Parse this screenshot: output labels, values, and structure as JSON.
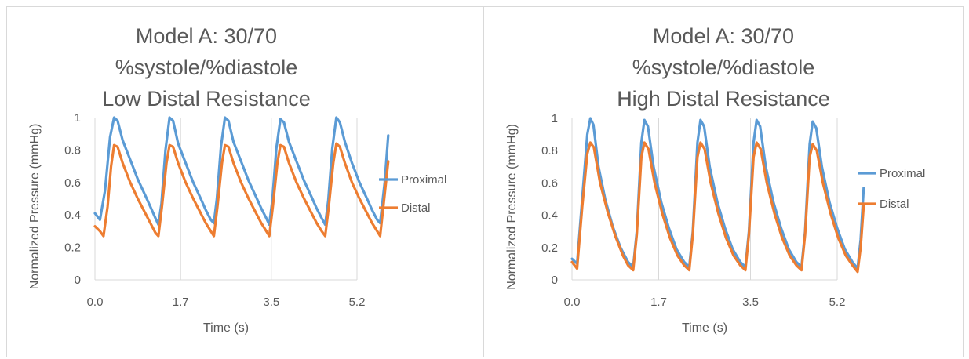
{
  "chart_data": [
    {
      "type": "line",
      "title": [
        "Model A: 30/70",
        "%systole/%diastole",
        "Low Distal Resistance"
      ],
      "xlabel": "Time (s)",
      "ylabel": "Normalized Pressure (mmHg)",
      "xlim": [
        0,
        5.2
      ],
      "ylim": [
        0,
        1
      ],
      "xticks": [
        0,
        1.7,
        3.5,
        5.2
      ],
      "xtick_labels": [
        "0.0",
        "1.7",
        "3.5",
        "5.2"
      ],
      "yticks": [
        0,
        0.2,
        0.4,
        0.6,
        0.8,
        1
      ],
      "ytick_labels": [
        "0",
        "0.2",
        "0.4",
        "0.6",
        "0.8",
        "1"
      ],
      "grid": "vertical",
      "legend": "right",
      "series": [
        {
          "name": "Proximal",
          "color": "#5B9BD5",
          "points": [
            [
              0.0,
              0.41
            ],
            [
              0.1,
              0.37
            ],
            [
              0.2,
              0.55
            ],
            [
              0.3,
              0.88
            ],
            [
              0.38,
              1.0
            ],
            [
              0.45,
              0.98
            ],
            [
              0.55,
              0.86
            ],
            [
              0.7,
              0.74
            ],
            [
              0.85,
              0.62
            ],
            [
              1.0,
              0.52
            ],
            [
              1.1,
              0.45
            ],
            [
              1.2,
              0.38
            ],
            [
              1.26,
              0.34
            ],
            [
              1.32,
              0.47
            ],
            [
              1.4,
              0.8
            ],
            [
              1.48,
              1.0
            ],
            [
              1.55,
              0.98
            ],
            [
              1.65,
              0.84
            ],
            [
              1.8,
              0.72
            ],
            [
              1.95,
              0.6
            ],
            [
              2.1,
              0.5
            ],
            [
              2.2,
              0.43
            ],
            [
              2.3,
              0.37
            ],
            [
              2.36,
              0.35
            ],
            [
              2.42,
              0.5
            ],
            [
              2.5,
              0.82
            ],
            [
              2.58,
              1.0
            ],
            [
              2.65,
              0.98
            ],
            [
              2.75,
              0.85
            ],
            [
              2.9,
              0.73
            ],
            [
              3.05,
              0.61
            ],
            [
              3.2,
              0.51
            ],
            [
              3.3,
              0.44
            ],
            [
              3.4,
              0.38
            ],
            [
              3.46,
              0.34
            ],
            [
              3.52,
              0.49
            ],
            [
              3.6,
              0.81
            ],
            [
              3.68,
              0.99
            ],
            [
              3.75,
              0.97
            ],
            [
              3.85,
              0.85
            ],
            [
              4.0,
              0.73
            ],
            [
              4.15,
              0.61
            ],
            [
              4.3,
              0.51
            ],
            [
              4.4,
              0.44
            ],
            [
              4.5,
              0.38
            ],
            [
              4.57,
              0.34
            ],
            [
              4.63,
              0.49
            ],
            [
              4.71,
              0.81
            ],
            [
              4.79,
              1.0
            ],
            [
              4.86,
              0.97
            ],
            [
              4.96,
              0.85
            ],
            [
              5.1,
              0.72
            ],
            [
              5.25,
              0.6
            ],
            [
              5.4,
              0.5
            ],
            [
              5.5,
              0.43
            ],
            [
              5.6,
              0.37
            ],
            [
              5.66,
              0.35
            ],
            [
              5.75,
              0.6
            ],
            [
              5.82,
              0.89
            ]
          ]
        },
        {
          "name": "Distal",
          "color": "#ED7D31",
          "points": [
            [
              0.0,
              0.33
            ],
            [
              0.1,
              0.3
            ],
            [
              0.17,
              0.27
            ],
            [
              0.25,
              0.45
            ],
            [
              0.32,
              0.7
            ],
            [
              0.38,
              0.83
            ],
            [
              0.45,
              0.82
            ],
            [
              0.55,
              0.72
            ],
            [
              0.7,
              0.6
            ],
            [
              0.85,
              0.5
            ],
            [
              1.0,
              0.41
            ],
            [
              1.1,
              0.35
            ],
            [
              1.2,
              0.29
            ],
            [
              1.26,
              0.27
            ],
            [
              1.33,
              0.45
            ],
            [
              1.42,
              0.72
            ],
            [
              1.48,
              0.83
            ],
            [
              1.55,
              0.82
            ],
            [
              1.65,
              0.72
            ],
            [
              1.8,
              0.6
            ],
            [
              1.95,
              0.5
            ],
            [
              2.1,
              0.41
            ],
            [
              2.2,
              0.35
            ],
            [
              2.3,
              0.3
            ],
            [
              2.36,
              0.27
            ],
            [
              2.43,
              0.45
            ],
            [
              2.52,
              0.72
            ],
            [
              2.58,
              0.83
            ],
            [
              2.65,
              0.82
            ],
            [
              2.75,
              0.72
            ],
            [
              2.9,
              0.6
            ],
            [
              3.05,
              0.5
            ],
            [
              3.2,
              0.41
            ],
            [
              3.3,
              0.35
            ],
            [
              3.4,
              0.3
            ],
            [
              3.46,
              0.27
            ],
            [
              3.53,
              0.45
            ],
            [
              3.62,
              0.72
            ],
            [
              3.68,
              0.83
            ],
            [
              3.75,
              0.82
            ],
            [
              3.85,
              0.72
            ],
            [
              4.0,
              0.6
            ],
            [
              4.15,
              0.5
            ],
            [
              4.3,
              0.41
            ],
            [
              4.4,
              0.35
            ],
            [
              4.5,
              0.3
            ],
            [
              4.57,
              0.27
            ],
            [
              4.64,
              0.45
            ],
            [
              4.73,
              0.72
            ],
            [
              4.79,
              0.84
            ],
            [
              4.86,
              0.82
            ],
            [
              4.96,
              0.72
            ],
            [
              5.1,
              0.6
            ],
            [
              5.25,
              0.5
            ],
            [
              5.4,
              0.41
            ],
            [
              5.5,
              0.35
            ],
            [
              5.6,
              0.3
            ],
            [
              5.66,
              0.27
            ],
            [
              5.74,
              0.5
            ],
            [
              5.82,
              0.73
            ]
          ]
        }
      ]
    },
    {
      "type": "line",
      "title": [
        "Model A: 30/70",
        "%systole/%diastole",
        "High Distal Resistance"
      ],
      "xlabel": "Time (s)",
      "ylabel": "Normalized Pressure (mmHg)",
      "xlim": [
        0,
        5.2
      ],
      "ylim": [
        0,
        1
      ],
      "xticks": [
        0,
        1.7,
        3.5,
        5.2
      ],
      "xtick_labels": [
        "0.0",
        "1.7",
        "3.5",
        "5.2"
      ],
      "yticks": [
        0,
        0.2,
        0.4,
        0.6,
        0.8,
        1
      ],
      "ytick_labels": [
        "0",
        "0.2",
        "0.4",
        "0.6",
        "0.8",
        "1"
      ],
      "grid": "vertical",
      "legend": "right",
      "series": [
        {
          "name": "Proximal",
          "color": "#5B9BD5",
          "points": [
            [
              0.0,
              0.13
            ],
            [
              0.1,
              0.1
            ],
            [
              0.2,
              0.5
            ],
            [
              0.3,
              0.9
            ],
            [
              0.36,
              1.0
            ],
            [
              0.42,
              0.96
            ],
            [
              0.52,
              0.7
            ],
            [
              0.65,
              0.5
            ],
            [
              0.8,
              0.33
            ],
            [
              0.95,
              0.2
            ],
            [
              1.1,
              0.11
            ],
            [
              1.2,
              0.08
            ],
            [
              1.27,
              0.3
            ],
            [
              1.36,
              0.85
            ],
            [
              1.42,
              0.99
            ],
            [
              1.49,
              0.95
            ],
            [
              1.6,
              0.7
            ],
            [
              1.75,
              0.48
            ],
            [
              1.9,
              0.32
            ],
            [
              2.05,
              0.19
            ],
            [
              2.2,
              0.11
            ],
            [
              2.3,
              0.08
            ],
            [
              2.37,
              0.3
            ],
            [
              2.46,
              0.85
            ],
            [
              2.52,
              0.99
            ],
            [
              2.59,
              0.95
            ],
            [
              2.7,
              0.7
            ],
            [
              2.85,
              0.48
            ],
            [
              3.0,
              0.32
            ],
            [
              3.15,
              0.19
            ],
            [
              3.3,
              0.11
            ],
            [
              3.4,
              0.08
            ],
            [
              3.47,
              0.3
            ],
            [
              3.56,
              0.85
            ],
            [
              3.62,
              0.99
            ],
            [
              3.69,
              0.95
            ],
            [
              3.8,
              0.7
            ],
            [
              3.95,
              0.48
            ],
            [
              4.1,
              0.32
            ],
            [
              4.25,
              0.19
            ],
            [
              4.4,
              0.11
            ],
            [
              4.5,
              0.08
            ],
            [
              4.57,
              0.3
            ],
            [
              4.66,
              0.84
            ],
            [
              4.72,
              0.98
            ],
            [
              4.79,
              0.94
            ],
            [
              4.9,
              0.7
            ],
            [
              5.05,
              0.48
            ],
            [
              5.2,
              0.32
            ],
            [
              5.35,
              0.19
            ],
            [
              5.5,
              0.11
            ],
            [
              5.6,
              0.07
            ],
            [
              5.66,
              0.25
            ],
            [
              5.72,
              0.57
            ]
          ]
        },
        {
          "name": "Distal",
          "color": "#ED7D31",
          "points": [
            [
              0.0,
              0.11
            ],
            [
              0.1,
              0.07
            ],
            [
              0.2,
              0.45
            ],
            [
              0.3,
              0.78
            ],
            [
              0.36,
              0.85
            ],
            [
              0.43,
              0.82
            ],
            [
              0.55,
              0.6
            ],
            [
              0.7,
              0.42
            ],
            [
              0.85,
              0.27
            ],
            [
              1.0,
              0.15
            ],
            [
              1.1,
              0.09
            ],
            [
              1.2,
              0.06
            ],
            [
              1.27,
              0.28
            ],
            [
              1.36,
              0.76
            ],
            [
              1.42,
              0.85
            ],
            [
              1.5,
              0.81
            ],
            [
              1.62,
              0.6
            ],
            [
              1.77,
              0.41
            ],
            [
              1.92,
              0.26
            ],
            [
              2.07,
              0.15
            ],
            [
              2.2,
              0.09
            ],
            [
              2.3,
              0.06
            ],
            [
              2.37,
              0.28
            ],
            [
              2.46,
              0.76
            ],
            [
              2.52,
              0.85
            ],
            [
              2.6,
              0.81
            ],
            [
              2.72,
              0.6
            ],
            [
              2.87,
              0.41
            ],
            [
              3.02,
              0.26
            ],
            [
              3.17,
              0.15
            ],
            [
              3.3,
              0.09
            ],
            [
              3.4,
              0.06
            ],
            [
              3.47,
              0.28
            ],
            [
              3.56,
              0.76
            ],
            [
              3.62,
              0.85
            ],
            [
              3.7,
              0.81
            ],
            [
              3.82,
              0.6
            ],
            [
              3.97,
              0.41
            ],
            [
              4.12,
              0.26
            ],
            [
              4.27,
              0.15
            ],
            [
              4.4,
              0.09
            ],
            [
              4.5,
              0.06
            ],
            [
              4.57,
              0.28
            ],
            [
              4.66,
              0.76
            ],
            [
              4.72,
              0.84
            ],
            [
              4.8,
              0.8
            ],
            [
              4.92,
              0.6
            ],
            [
              5.07,
              0.41
            ],
            [
              5.22,
              0.26
            ],
            [
              5.37,
              0.15
            ],
            [
              5.5,
              0.09
            ],
            [
              5.6,
              0.05
            ],
            [
              5.66,
              0.2
            ],
            [
              5.72,
              0.46
            ]
          ]
        }
      ]
    }
  ]
}
